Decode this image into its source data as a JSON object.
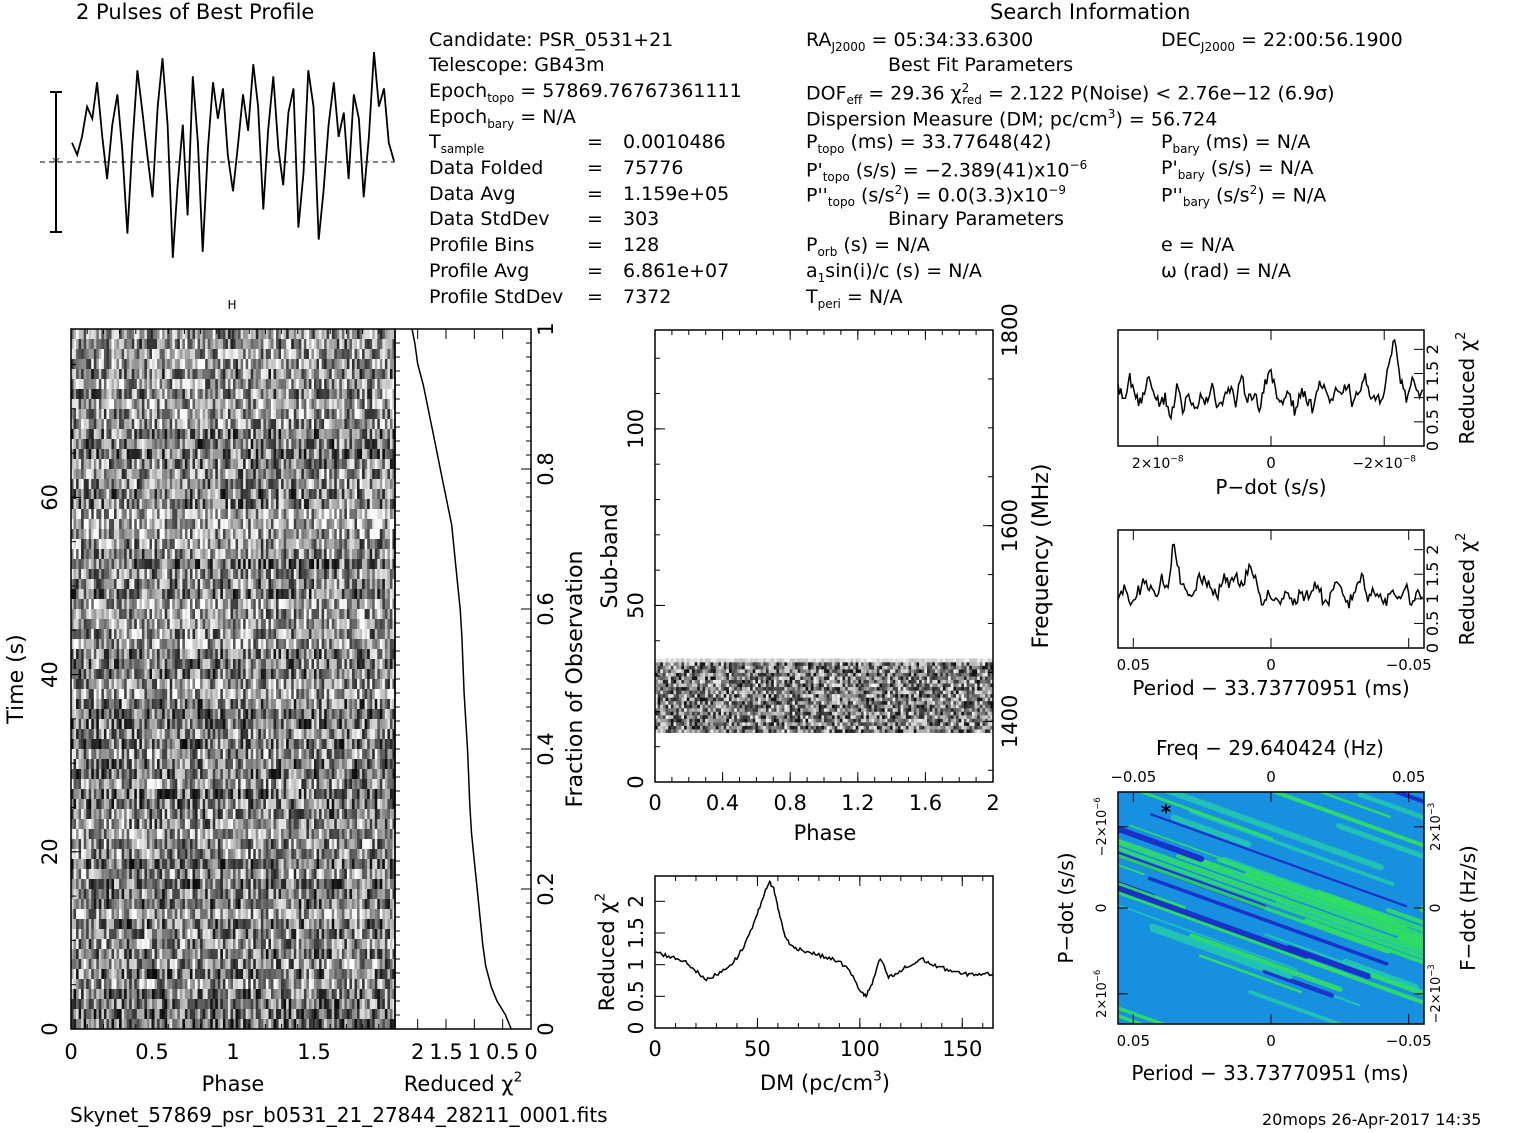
{
  "header": {
    "profile_title": "2 Pulses of Best Profile",
    "search_title": "Search Information",
    "best_fit_title": "Best Fit Parameters",
    "binary_title": "Binary Parameters"
  },
  "candidate_info": {
    "candidate": "Candidate:  PSR_0531+21",
    "telescope": "Telescope:  GB43m",
    "epoch_topo_label": "Epoch",
    "epoch_topo_sub": "topo",
    "epoch_topo_value": " = 57869.76767361111",
    "epoch_bary_label": "Epoch",
    "epoch_bary_sub": "bary",
    "epoch_bary_value": " = N/A",
    "rows": [
      {
        "label": "T",
        "sub": "sample",
        "eq": "=",
        "value": "0.0010486"
      },
      {
        "label": "Data Folded",
        "sub": "",
        "eq": "=",
        "value": "75776"
      },
      {
        "label": "Data Avg",
        "sub": "",
        "eq": "=",
        "value": "1.159e+05"
      },
      {
        "label": "Data StdDev",
        "sub": "",
        "eq": "=",
        "value": "303"
      },
      {
        "label": "Profile Bins",
        "sub": "",
        "eq": "=",
        "value": "128"
      },
      {
        "label": "Profile Avg",
        "sub": "",
        "eq": "=",
        "value": "6.861e+07"
      },
      {
        "label": "Profile StdDev",
        "sub": "",
        "eq": "=",
        "value": "7372"
      }
    ]
  },
  "search_info": {
    "ra": "RA",
    "ra_sub": "J2000",
    "ra_value": " = 05:34:33.6300",
    "dec": "DEC",
    "dec_sub": "J2000",
    "dec_value": " = 22:00:56.1900",
    "dof": "DOF",
    "dof_sub": "eff",
    "dof_value": " = 29.36  χ",
    "chi_sup": "2",
    "chi_sub": "red",
    "chi_value": " = 2.122  P(Noise) < 2.76e−12  (6.9σ)",
    "dm_text": "Dispersion Measure (DM; pc/cm",
    "dm_sup": "3",
    "dm_value": ") = 56.724",
    "ptopo": "P",
    "ptopo_sub": "topo",
    "ptopo_value": " (ms) =  33.77648(42)",
    "pbary": "P",
    "pbary_sub": "bary",
    "pbary_value": " (ms) = N/A",
    "pdtopo": "P'",
    "pdtopo_sub": "topo",
    "pdtopo_value": " (s/s) = −2.389(41)x10",
    "pdtopo_exp": "−6",
    "pdbary": "P'",
    "pdbary_sub": "bary",
    "pdbary_value": " (s/s) = N/A",
    "pddtopo": "P''",
    "pddtopo_sub": "topo",
    "pddtopo_value_a": " (s/s",
    "pddtopo_sup": "2",
    "pddtopo_value_b": ") = 0.0(3.3)x10",
    "pddtopo_exp": "−9",
    "pddbary": "P''",
    "pddbary_sub": "bary",
    "pddbary_value_a": " (s/s",
    "pddbary_sup": "2",
    "pddbary_value_b": ") = N/A",
    "porb": "P",
    "porb_sub": "orb",
    "porb_value": " (s) = N/A",
    "e_value": "e = N/A",
    "asini": "a",
    "asini_sub": "1",
    "asini_value": "sin(i)/c (s) = N/A",
    "omega_value": "ω (rad) = N/A",
    "tperi": "T",
    "tperi_sub": "peri",
    "tperi_value": " = N/A"
  },
  "footer": {
    "filename": "Skynet_57869_psr_b0531_21_27844_28211_0001.fits",
    "stamp": "20mops 26-Apr-2017 14:35"
  },
  "chart_data": [
    {
      "id": "profile",
      "type": "line",
      "title": "2 Pulses of Best Profile",
      "x": [
        0,
        0.016,
        0.031,
        0.047,
        0.063,
        0.078,
        0.094,
        0.109,
        0.125,
        0.141,
        0.156,
        0.172,
        0.188,
        0.203,
        0.219,
        0.234,
        0.25,
        0.266,
        0.281,
        0.297,
        0.313,
        0.328,
        0.344,
        0.359,
        0.375,
        0.391,
        0.406,
        0.422,
        0.438,
        0.453,
        0.469,
        0.484,
        0.5,
        0.516,
        0.531,
        0.547,
        0.563,
        0.578,
        0.594,
        0.609,
        0.625,
        0.641,
        0.656,
        0.672,
        0.688,
        0.703,
        0.719,
        0.734,
        0.75,
        0.766,
        0.781,
        0.797,
        0.813,
        0.828,
        0.844,
        0.859,
        0.875,
        0.891,
        0.906,
        0.922,
        0.938,
        0.953,
        0.969,
        0.984,
        1.0
      ],
      "values": [
        0.3,
        0.1,
        0.4,
        0.9,
        0.7,
        1.3,
        0.4,
        -0.3,
        0.6,
        1.1,
        0.2,
        -1.2,
        0.3,
        1.5,
        0.8,
        0.1,
        -0.6,
        0.9,
        1.7,
        0.6,
        -1.6,
        -0.4,
        0.6,
        -0.9,
        1.4,
        0.3,
        -1.5,
        0.2,
        1.3,
        0.7,
        1.2,
        0.1,
        -0.5,
        0.3,
        1.1,
        0.5,
        1.6,
        0.9,
        -0.8,
        0.5,
        1.4,
        0.2,
        -0.4,
        0.8,
        1.2,
        -1.1,
        -0.2,
        1.5,
        0.9,
        -1.3,
        -0.5,
        0.6,
        1.3,
        0.4,
        0.8,
        -0.3,
        1.1,
        0.7,
        -0.6,
        0.4,
        1.8,
        0.9,
        1.2,
        0.3,
        0.0
      ],
      "ylim": [
        -2,
        2
      ]
    },
    {
      "id": "time-phase",
      "type": "heatmap",
      "xlabel": "Phase",
      "ylabel": "Time (s)",
      "xlim": [
        0,
        2
      ],
      "ylim": [
        0,
        79
      ],
      "xticks": [
        "0",
        "0.5",
        "1",
        "1.5"
      ],
      "yticks": [
        "0",
        "20",
        "40",
        "60"
      ],
      "ytick_values": [
        0,
        20,
        40,
        60
      ]
    },
    {
      "id": "time-chi2",
      "type": "line",
      "xlabel": "Reduced χ",
      "xlabel_sup": "2",
      "ylabel": "Fraction of Observation",
      "xticks": [
        "2",
        "1.5",
        "1",
        "0.5",
        "0"
      ],
      "yticks": [
        "0",
        "0.2",
        "0.4",
        "0.6",
        "0.8",
        "1"
      ],
      "xlim": [
        2.4,
        0
      ],
      "ylim": [
        0,
        1
      ],
      "x": [
        0.35,
        0.45,
        0.6,
        0.7,
        0.8,
        0.85,
        0.9,
        0.95,
        1.0,
        1.05,
        1.08,
        1.1,
        1.12,
        1.15,
        1.18,
        1.2,
        1.22,
        1.25,
        1.3,
        1.35,
        1.4,
        1.5,
        1.6,
        1.7,
        1.8,
        1.9,
        2.0,
        2.05,
        2.1
      ],
      "y": [
        0,
        0.02,
        0.04,
        0.06,
        0.09,
        0.12,
        0.16,
        0.2,
        0.24,
        0.28,
        0.32,
        0.36,
        0.4,
        0.44,
        0.48,
        0.52,
        0.56,
        0.6,
        0.64,
        0.68,
        0.72,
        0.76,
        0.8,
        0.84,
        0.88,
        0.92,
        0.95,
        0.98,
        1.0
      ]
    },
    {
      "id": "subband",
      "type": "heatmap",
      "xlabel": "Phase",
      "ylabel": "Sub-band",
      "ylabel_right": "Frequency (MHz)",
      "xlim": [
        0,
        2
      ],
      "ylim": [
        0,
        128
      ],
      "xticks": [
        "0",
        "0.4",
        "0.8",
        "1.2",
        "1.6",
        "2"
      ],
      "yticks": [
        "0",
        "50",
        "100"
      ],
      "ytick_values": [
        0,
        50,
        100
      ],
      "freq_ticks": [
        "1400",
        "1600",
        "1800"
      ],
      "freq_tick_values": [
        1400,
        1600,
        1800
      ],
      "freq_lim": [
        1338,
        1800
      ],
      "band_rows": [
        14,
        35
      ]
    },
    {
      "id": "dm-curve",
      "type": "line",
      "xlabel": "DM (pc/cm",
      "xlabel_sup": "3",
      "xlabel_end": ")",
      "ylabel": "Reduced χ",
      "ylabel_sup": "2",
      "xlim": [
        0,
        165
      ],
      "ylim": [
        0,
        2.4
      ],
      "xticks": [
        "0",
        "50",
        "100",
        "150"
      ],
      "xtick_values": [
        0,
        50,
        100,
        150
      ],
      "yticks": [
        "0",
        "0.5",
        "1",
        "1.5",
        "2"
      ],
      "ytick_values": [
        0,
        0.5,
        1,
        1.5,
        2
      ],
      "x": [
        0,
        5,
        10,
        15,
        20,
        25,
        30,
        35,
        40,
        45,
        50,
        53,
        56,
        58,
        60,
        63,
        66,
        70,
        75,
        80,
        85,
        90,
        95,
        100,
        103,
        106,
        110,
        114,
        118,
        122,
        126,
        130,
        135,
        140,
        145,
        150,
        155,
        160,
        165
      ],
      "y": [
        1.2,
        1.15,
        1.1,
        1.05,
        0.9,
        0.75,
        0.85,
        0.95,
        1.1,
        1.4,
        1.8,
        2.1,
        2.3,
        2.2,
        1.9,
        1.5,
        1.3,
        1.25,
        1.2,
        1.15,
        1.1,
        1.05,
        0.9,
        0.6,
        0.5,
        0.7,
        1.1,
        0.8,
        0.85,
        0.95,
        1.0,
        1.1,
        1.0,
        0.95,
        0.9,
        0.85,
        0.85,
        0.85,
        0.85
      ]
    },
    {
      "id": "pdot-curve",
      "type": "line",
      "xlabel": "P−dot (s/s)",
      "ylabel": "Reduced χ",
      "ylabel_sup": "2",
      "xticks": [
        "2×10",
        "0",
        "−2×10"
      ],
      "xtick_exp": "−8",
      "yticks": [
        "0",
        "0.5",
        "1",
        "1.5",
        "2"
      ],
      "ytick_values": [
        0,
        0.5,
        1,
        1.5,
        2
      ],
      "ylim": [
        0,
        2.4
      ],
      "values": [
        1.2,
        1.0,
        1.4,
        1.1,
        0.8,
        1.5,
        1.2,
        0.9,
        1.0,
        0.6,
        1.2,
        0.8,
        1.0,
        0.7,
        1.1,
        0.9,
        1.3,
        0.8,
        1.0,
        1.2,
        0.9,
        1.4,
        1.0,
        1.1,
        0.8,
        1.3,
        1.5,
        1.0,
        0.9,
        1.2,
        0.7,
        1.1,
        1.0,
        0.8,
        1.2,
        1.3,
        0.9,
        1.1,
        1.0,
        1.3,
        0.8,
        1.2,
        1.4,
        1.0,
        0.9,
        1.1,
        1.6,
        2.3,
        1.4,
        1.0,
        1.3,
        1.1,
        1.2
      ]
    },
    {
      "id": "period-curve",
      "type": "line",
      "xlabel": "Period − 33.73770951 (ms)",
      "ylabel": "Reduced χ",
      "ylabel_sup": "2",
      "xticks": [
        "0.05",
        "0",
        "−0.05"
      ],
      "yticks": [
        "0",
        "0.5",
        "1",
        "1.5",
        "2"
      ],
      "ytick_values": [
        0,
        0.5,
        1,
        1.5,
        2
      ],
      "ylim": [
        0,
        2.4
      ],
      "values": [
        1.0,
        1.2,
        1.0,
        1.1,
        1.3,
        1.2,
        1.0,
        1.4,
        1.3,
        2.2,
        1.3,
        1.1,
        1.0,
        1.5,
        1.3,
        1.2,
        1.1,
        1.4,
        1.3,
        1.5,
        1.2,
        1.7,
        1.4,
        0.9,
        1.1,
        0.9,
        1.0,
        1.2,
        0.9,
        1.1,
        1.0,
        1.2,
        1.3,
        0.9,
        1.0,
        1.3,
        1.1,
        0.9,
        1.2,
        1.5,
        1.0,
        1.2,
        1.1,
        0.9,
        1.2,
        1.0,
        1.3,
        0.9,
        1.1,
        1.0
      ]
    },
    {
      "id": "ppdot-plane",
      "type": "heatmap",
      "title": "Freq − 29.640424 (Hz)",
      "xlabel": "Period − 33.73770951 (ms)",
      "ylabel": "P−dot (s/s)",
      "ylabel_right": "F−dot (Hz/s)",
      "top_ticks": [
        "−0.05",
        "0",
        "0.05"
      ],
      "bottom_ticks": [
        "0.05",
        "0",
        "−0.05"
      ],
      "left_ticks": [
        "−2×10",
        "0",
        "2×10"
      ],
      "left_exp": "−6",
      "right_ticks": [
        "2×10",
        "0",
        "−2×10"
      ],
      "right_exp": "−3",
      "colors": [
        "#1a28c8",
        "#1890e0",
        "#22c8b0",
        "#30e060"
      ]
    }
  ]
}
